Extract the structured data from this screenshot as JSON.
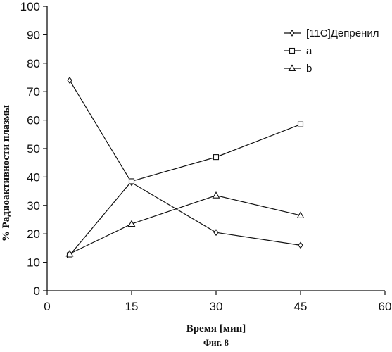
{
  "figure_caption": "Фиг. 8",
  "chart_data": {
    "type": "line",
    "xlabel": "Время [мин]",
    "ylabel": "% Радиоактивности плазмы",
    "xlim": [
      0,
      60
    ],
    "ylim": [
      0,
      100
    ],
    "xticks": [
      0,
      15,
      30,
      45,
      60
    ],
    "yticks": [
      0,
      10,
      20,
      30,
      40,
      50,
      60,
      70,
      80,
      90,
      100
    ],
    "grid": false,
    "legend_position": "top-right",
    "series": [
      {
        "name": "[11C]Депренил",
        "marker": "diamond",
        "x": [
          4,
          15,
          30,
          45
        ],
        "y": [
          74,
          38,
          20.5,
          16
        ]
      },
      {
        "name": "a",
        "marker": "square",
        "x": [
          4,
          15,
          30,
          45
        ],
        "y": [
          12.5,
          38.5,
          47,
          58.5
        ]
      },
      {
        "name": "b",
        "marker": "triangle",
        "x": [
          4,
          15,
          30,
          45
        ],
        "y": [
          13,
          23.5,
          33.5,
          26.5
        ]
      }
    ]
  }
}
